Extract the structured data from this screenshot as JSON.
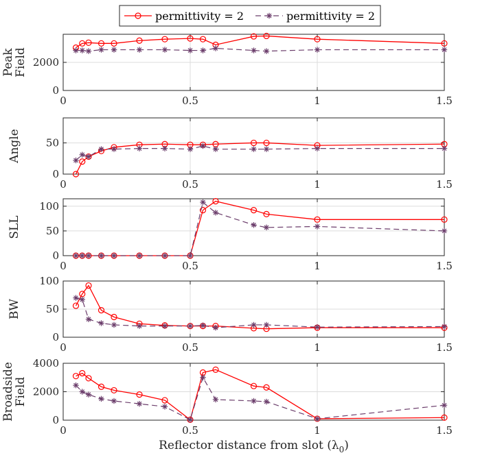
{
  "chart_data": [
    {
      "type": "line",
      "ylabel": [
        "Peak",
        "Field"
      ],
      "xlim": [
        0,
        1.5
      ],
      "ylim": [
        0,
        4000
      ],
      "xticks": [
        "0",
        "0.5",
        "1",
        "1.5"
      ],
      "yticks": [
        "0",
        "2000"
      ],
      "grid": true,
      "x": [
        0.05,
        0.075,
        0.1,
        0.15,
        0.2,
        0.3,
        0.4,
        0.5,
        0.55,
        0.6,
        0.75,
        0.8,
        1.0,
        1.5
      ],
      "series": [
        {
          "name": "permittivity = 2",
          "values": [
            3050,
            3350,
            3400,
            3350,
            3350,
            3550,
            3650,
            3700,
            3650,
            3250,
            3850,
            3880,
            3650,
            3350
          ]
        },
        {
          "name": "permittivity = 2",
          "values": [
            2850,
            2850,
            2800,
            2900,
            2900,
            2900,
            2900,
            2850,
            2850,
            3000,
            2850,
            2800,
            2900,
            2900
          ]
        }
      ]
    },
    {
      "type": "line",
      "ylabel": [
        "Angle"
      ],
      "xlim": [
        0,
        1.5
      ],
      "ylim": [
        0,
        90
      ],
      "xticks": [
        "0",
        "0.5",
        "1",
        "1.5"
      ],
      "yticks": [
        "0",
        "50"
      ],
      "grid": true,
      "x": [
        0.05,
        0.075,
        0.1,
        0.15,
        0.2,
        0.3,
        0.4,
        0.5,
        0.55,
        0.6,
        0.75,
        0.8,
        1.0,
        1.5
      ],
      "series": [
        {
          "name": "permittivity = 2",
          "values": [
            0,
            20,
            28,
            37,
            43,
            47,
            48,
            47,
            47,
            48,
            50,
            50,
            46,
            48
          ]
        },
        {
          "name": "permittivity = 2",
          "values": [
            22,
            31,
            28,
            40,
            40,
            41,
            41,
            40,
            45,
            40,
            40,
            40,
            41,
            41
          ]
        }
      ]
    },
    {
      "type": "line",
      "ylabel": [
        "SLL"
      ],
      "xlim": [
        0,
        1.5
      ],
      "ylim": [
        0,
        115
      ],
      "xticks": [
        "0",
        "0.5",
        "1",
        "1.5"
      ],
      "yticks": [
        "0",
        "50",
        "100"
      ],
      "grid": true,
      "x": [
        0.05,
        0.075,
        0.1,
        0.15,
        0.2,
        0.3,
        0.4,
        0.5,
        0.55,
        0.6,
        0.75,
        0.8,
        1.0,
        1.5
      ],
      "series": [
        {
          "name": "permittivity = 2",
          "values": [
            0,
            0,
            0,
            0,
            0,
            0,
            0,
            0,
            92,
            110,
            92,
            84,
            73,
            73
          ]
        },
        {
          "name": "permittivity = 2",
          "values": [
            0,
            0,
            0,
            0,
            0,
            0,
            0,
            0,
            108,
            87,
            62,
            57,
            59,
            50
          ]
        }
      ]
    },
    {
      "type": "line",
      "ylabel": [
        "BW"
      ],
      "xlim": [
        0,
        1.5
      ],
      "ylim": [
        0,
        100
      ],
      "xticks": [
        "0",
        "0.5",
        "1",
        "1.5"
      ],
      "yticks": [
        "0",
        "50",
        "100"
      ],
      "grid": true,
      "x": [
        0.05,
        0.075,
        0.1,
        0.15,
        0.2,
        0.3,
        0.4,
        0.5,
        0.55,
        0.6,
        0.75,
        0.8,
        1.0,
        1.5
      ],
      "series": [
        {
          "name": "permittivity = 2",
          "values": [
            56,
            77,
            92,
            48,
            36,
            24,
            21,
            20,
            20,
            20,
            16,
            15,
            17,
            17
          ]
        },
        {
          "name": "permittivity = 2",
          "values": [
            70,
            67,
            32,
            25,
            22,
            20,
            20,
            20,
            21,
            17,
            22,
            22,
            18,
            19
          ]
        }
      ]
    },
    {
      "type": "line",
      "ylabel": [
        "Broadside",
        "Field"
      ],
      "xlim": [
        0,
        1.5
      ],
      "ylim": [
        0,
        4000
      ],
      "xticks": [
        "0",
        "0.5",
        "1",
        "1.5"
      ],
      "yticks": [
        "0",
        "2000",
        "4000"
      ],
      "grid": true,
      "xlabel": "Reflector distance from slot (λ",
      "xlabel_sub": "0",
      "xlabel_end": ")",
      "x": [
        0.05,
        0.075,
        0.1,
        0.15,
        0.2,
        0.3,
        0.4,
        0.5,
        0.55,
        0.6,
        0.75,
        0.8,
        1.0,
        1.5
      ],
      "series": [
        {
          "name": "permittivity = 2",
          "values": [
            3100,
            3300,
            2950,
            2350,
            2100,
            1800,
            1400,
            30,
            3350,
            3550,
            2400,
            2300,
            100,
            180
          ]
        },
        {
          "name": "permittivity = 2",
          "values": [
            2450,
            2000,
            1800,
            1500,
            1350,
            1150,
            950,
            30,
            3000,
            1450,
            1350,
            1300,
            100,
            1050
          ]
        }
      ]
    }
  ],
  "legend": {
    "entries": [
      {
        "label": "permittivity = 2",
        "color": "#ff0000",
        "marker": "circle",
        "dash": "solid"
      },
      {
        "label": "permittivity = 2",
        "color": "#6b3d6b",
        "marker": "asterisk",
        "dash": "dashed"
      }
    ]
  },
  "colors": {
    "series1": "#ff0000",
    "series2": "#6b3d6b",
    "grid": "#dcdcdc",
    "axis": "#262626"
  }
}
